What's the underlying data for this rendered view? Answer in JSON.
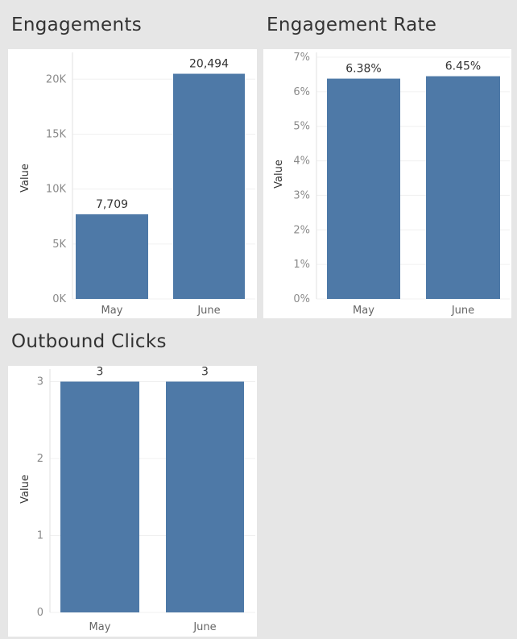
{
  "colors": {
    "bar": "#4e79a7"
  },
  "chart_data": [
    {
      "type": "bar",
      "title": "Engagements",
      "ylabel": "Value",
      "xlabel": "",
      "categories": [
        "May",
        "June"
      ],
      "values": [
        7709,
        20494
      ],
      "data_labels": [
        "7,709",
        "20,494"
      ],
      "yticks": [
        0,
        5000,
        10000,
        15000,
        20000
      ],
      "ytick_labels": [
        "0K",
        "5K",
        "10K",
        "15K",
        "20K"
      ],
      "ylim": [
        0,
        22000
      ],
      "grid": true
    },
    {
      "type": "bar",
      "title": "Engagement Rate",
      "ylabel": "Value",
      "xlabel": "",
      "categories": [
        "May",
        "June"
      ],
      "values": [
        6.38,
        6.45
      ],
      "data_labels": [
        "6.38%",
        "6.45%"
      ],
      "yticks": [
        0,
        1,
        2,
        3,
        4,
        5,
        6,
        7
      ],
      "ytick_labels": [
        "0%",
        "1%",
        "2%",
        "3%",
        "4%",
        "5%",
        "6%",
        "7%"
      ],
      "ylim": [
        0,
        7
      ],
      "grid": true
    },
    {
      "type": "bar",
      "title": "Outbound Clicks",
      "ylabel": "Value",
      "xlabel": "",
      "categories": [
        "May",
        "June"
      ],
      "values": [
        3,
        3
      ],
      "data_labels": [
        "3",
        "3"
      ],
      "yticks": [
        0,
        1,
        2,
        3
      ],
      "ytick_labels": [
        "0",
        "1",
        "2",
        "3"
      ],
      "ylim": [
        0,
        3.1
      ],
      "grid": true
    }
  ]
}
